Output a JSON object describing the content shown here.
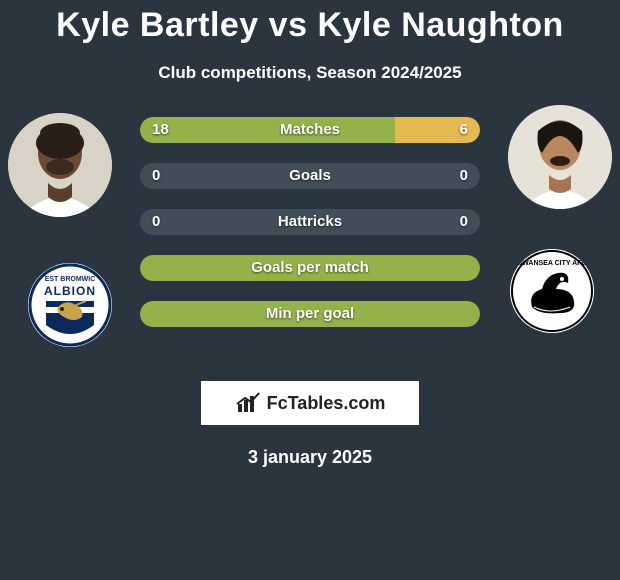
{
  "title": {
    "player1": "Kyle Bartley",
    "vs": "vs",
    "player2": "Kyle Naughton"
  },
  "subtitle": "Club competitions, Season 2024/2025",
  "colors": {
    "bg": "#2a3540",
    "bar_track": "#414e59",
    "left_fill": "#93b24a",
    "right_fill": "#e4b94d",
    "text": "#ffffff"
  },
  "bars": [
    {
      "label": "Matches",
      "left_val": "18",
      "right_val": "6",
      "left_pct": 75,
      "right_pct": 25
    },
    {
      "label": "Goals",
      "left_val": "0",
      "right_val": "0",
      "left_pct": 0,
      "right_pct": 0
    },
    {
      "label": "Hattricks",
      "left_val": "0",
      "right_val": "0",
      "left_pct": 0,
      "right_pct": 0
    },
    {
      "label": "Goals per match",
      "left_val": "",
      "right_val": "",
      "left_pct": 100,
      "right_pct": 0,
      "full_green": true
    },
    {
      "label": "Min per goal",
      "left_val": "",
      "right_val": "",
      "left_pct": 100,
      "right_pct": 0,
      "full_green": true
    }
  ],
  "watermark": "FcTables.com",
  "date": "3 january 2025",
  "players": {
    "left": {
      "avatar_bg": "#d8d2c8",
      "skin": "#6b4a34",
      "shirt": "#ffffff"
    },
    "right": {
      "avatar_bg": "#e7e2d7",
      "skin": "#b8865f",
      "shirt": "#ffffff"
    }
  },
  "clubs": {
    "left": {
      "name": "West Bromwich Albion",
      "primary": "#0a2a5c",
      "secondary": "#ffffff"
    },
    "right": {
      "name": "Swansea City AFC",
      "primary": "#000000",
      "secondary": "#ffffff"
    }
  }
}
